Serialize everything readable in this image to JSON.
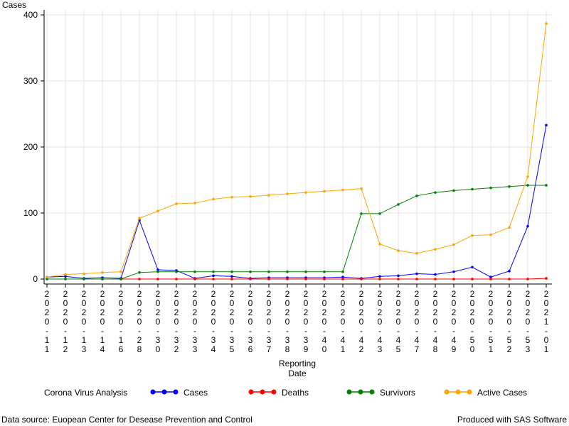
{
  "footer": {
    "source": "Data source: Euopean Center for Desease Prevention and Control",
    "producer": "Produced with SAS Software"
  },
  "legend": {
    "title": "Corona Virus Analysis"
  },
  "chart_data": {
    "type": "line",
    "title": "",
    "ylabel": "Cases",
    "xlabel_lines": [
      "Reporting",
      "Date"
    ],
    "ylim": [
      0,
      400
    ],
    "yticks": [
      0,
      100,
      200,
      300,
      400
    ],
    "grid": true,
    "legend_position": "bottom",
    "x": [
      "2020-11",
      "2020-12",
      "2020-13",
      "2020-14",
      "2020-16",
      "2020-28",
      "2020-30",
      "2020-32",
      "2020-33",
      "2020-34",
      "2020-35",
      "2020-36",
      "2020-37",
      "2020-38",
      "2020-39",
      "2020-40",
      "2020-41",
      "2020-42",
      "2020-43",
      "2020-45",
      "2020-47",
      "2020-48",
      "2020-49",
      "2020-50",
      "2020-51",
      "2020-52",
      "2020-53",
      "2021-01"
    ],
    "series": [
      {
        "name": "Cases",
        "color": "#0000ff",
        "values": [
          3,
          4,
          1,
          2,
          1,
          89,
          14,
          13,
          1,
          5,
          4,
          1,
          2,
          2,
          2,
          2,
          3,
          1,
          4,
          5,
          8,
          7,
          11,
          18,
          3,
          12,
          80,
          233
        ]
      },
      {
        "name": "Deaths",
        "color": "#ff0000",
        "values": [
          0,
          0,
          0,
          0,
          0,
          0,
          0,
          0,
          0,
          0,
          0,
          0,
          0,
          0,
          0,
          0,
          0,
          0,
          0,
          0,
          0,
          0,
          0,
          0,
          0,
          0,
          0,
          1
        ]
      },
      {
        "name": "Survivors",
        "color": "#008000",
        "values": [
          0,
          0,
          0,
          0,
          0,
          10,
          11,
          11,
          11,
          11,
          11,
          11,
          11,
          11,
          11,
          11,
          11,
          99,
          99,
          113,
          126,
          131,
          134,
          136,
          138,
          140,
          142,
          142
        ]
      },
      {
        "name": "Active Cases",
        "color": "#ffa500",
        "values": [
          3,
          7,
          8,
          10,
          11,
          92,
          103,
          114,
          115,
          121,
          124,
          125,
          127,
          129,
          131,
          133,
          135,
          137,
          53,
          43,
          39,
          45,
          52,
          66,
          67,
          78,
          155,
          387
        ]
      }
    ]
  }
}
